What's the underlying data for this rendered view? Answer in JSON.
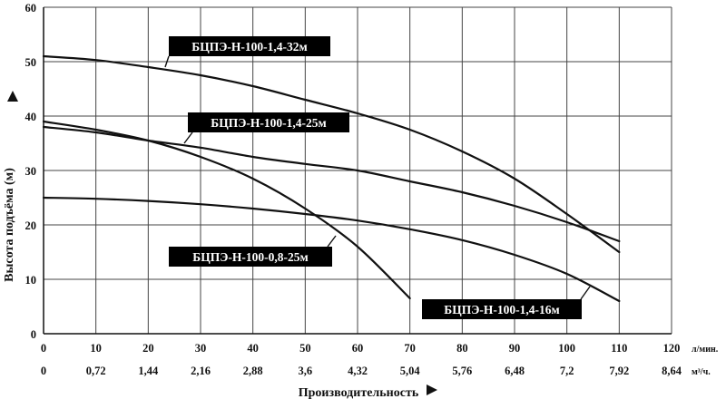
{
  "chart_data": {
    "type": "line",
    "xlabel": "Производительность",
    "ylabel": "Высота подъёма (м)",
    "x_unit_primary": "л/мин.",
    "x_unit_secondary": "м³/ч.",
    "xlim": [
      0,
      120
    ],
    "ylim": [
      0,
      60
    ],
    "x_ticks": [
      0,
      10,
      20,
      30,
      40,
      50,
      60,
      70,
      80,
      90,
      100,
      110,
      120
    ],
    "x_ticks_secondary": [
      "0",
      "0,72",
      "1,44",
      "2,16",
      "2,88",
      "3,6",
      "4,32",
      "5,04",
      "5,76",
      "6,48",
      "7,2",
      "7,92",
      "8,64"
    ],
    "y_ticks": [
      0,
      10,
      20,
      30,
      40,
      50,
      60
    ],
    "grid": true,
    "series": [
      {
        "name": "БЦПЭ-Н-100-1,4-32м",
        "x": [
          0,
          10,
          20,
          30,
          40,
          50,
          60,
          70,
          80,
          90,
          100,
          110
        ],
        "y": [
          51,
          50.3,
          49,
          47.5,
          45.5,
          43,
          40.5,
          37.5,
          33.5,
          28.5,
          22,
          15
        ]
      },
      {
        "name": "БЦПЭ-Н-100-1,4-25м",
        "x": [
          0,
          10,
          20,
          30,
          40,
          50,
          60,
          70,
          80,
          90,
          100,
          110
        ],
        "y": [
          38,
          37,
          35.5,
          34.2,
          32.5,
          31.2,
          30,
          28,
          26,
          23.5,
          20.5,
          17
        ]
      },
      {
        "name": "БЦПЭ-Н-100-0,8-25м",
        "x": [
          0,
          10,
          20,
          30,
          40,
          50,
          60,
          70
        ],
        "y": [
          39,
          37.5,
          35.5,
          32.5,
          28.5,
          23,
          16,
          6.5
        ]
      },
      {
        "name": "БЦПЭ-Н-100-1,4-16м",
        "x": [
          0,
          10,
          20,
          30,
          40,
          50,
          60,
          70,
          80,
          90,
          100,
          110
        ],
        "y": [
          25,
          24.8,
          24.4,
          23.8,
          23,
          22,
          20.8,
          19.2,
          17.2,
          14.5,
          11,
          6
        ]
      }
    ],
    "labels": [
      {
        "text": "БЦПЭ-Н-100-1,4-32м",
        "series": 0
      },
      {
        "text": "БЦПЭ-Н-100-1,4-25м",
        "series": 1
      },
      {
        "text": "БЦПЭ-Н-100-0,8-25м",
        "series": 2
      },
      {
        "text": "БЦПЭ-Н-100-1,4-16м",
        "series": 3
      }
    ],
    "line_color": "#111111",
    "grid_color": "#444444",
    "label_bg": "#000000",
    "label_fg": "#ffffff"
  }
}
